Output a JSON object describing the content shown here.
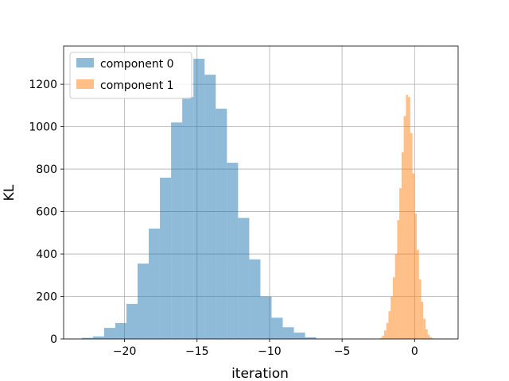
{
  "chart_data": {
    "type": "bar",
    "title": "",
    "xlabel": "iteration",
    "ylabel": "KL",
    "xlim": [
      -24.2,
      3.0
    ],
    "ylim": [
      0,
      1380
    ],
    "grid": true,
    "legend_position": "top-left",
    "x_ticks": [
      -20,
      -15,
      -10,
      -5,
      0
    ],
    "x_tick_labels": [
      "−20",
      "−15",
      "−10",
      "−5",
      "0"
    ],
    "y_ticks": [
      0,
      200,
      400,
      600,
      800,
      1000,
      1200
    ],
    "y_tick_labels": [
      "0",
      "200",
      "400",
      "600",
      "800",
      "1000",
      "1200"
    ],
    "series": [
      {
        "name": "component 0",
        "color": "#1f77b4",
        "opacity": 0.5,
        "bin_edges": [
          -22.95,
          -22.18,
          -21.41,
          -20.64,
          -19.87,
          -19.1,
          -18.33,
          -17.56,
          -16.79,
          -16.02,
          -15.25,
          -14.48,
          -13.71,
          -12.94,
          -12.17,
          -11.4,
          -10.63,
          -9.86,
          -9.09,
          -8.32,
          -7.55,
          -6.78
        ],
        "counts": [
          5,
          12,
          52,
          75,
          165,
          355,
          520,
          760,
          1020,
          1140,
          1320,
          1245,
          1085,
          830,
          570,
          375,
          200,
          100,
          55,
          30,
          8
        ]
      },
      {
        "name": "component 1",
        "color": "#ff7f0e",
        "opacity": 0.5,
        "bin_edges": [
          -2.4,
          -2.25,
          -2.1,
          -1.95,
          -1.8,
          -1.65,
          -1.5,
          -1.35,
          -1.2,
          -1.05,
          -0.9,
          -0.75,
          -0.6,
          -0.45,
          -0.3,
          -0.15,
          0.0,
          0.15,
          0.3,
          0.45,
          0.6,
          0.75,
          0.9,
          1.05,
          1.2,
          1.35,
          1.5
        ],
        "counts": [
          5,
          15,
          40,
          75,
          130,
          200,
          290,
          400,
          560,
          710,
          880,
          1050,
          1150,
          1140,
          970,
          780,
          590,
          420,
          280,
          175,
          95,
          45,
          20,
          8,
          3,
          1
        ]
      }
    ]
  }
}
